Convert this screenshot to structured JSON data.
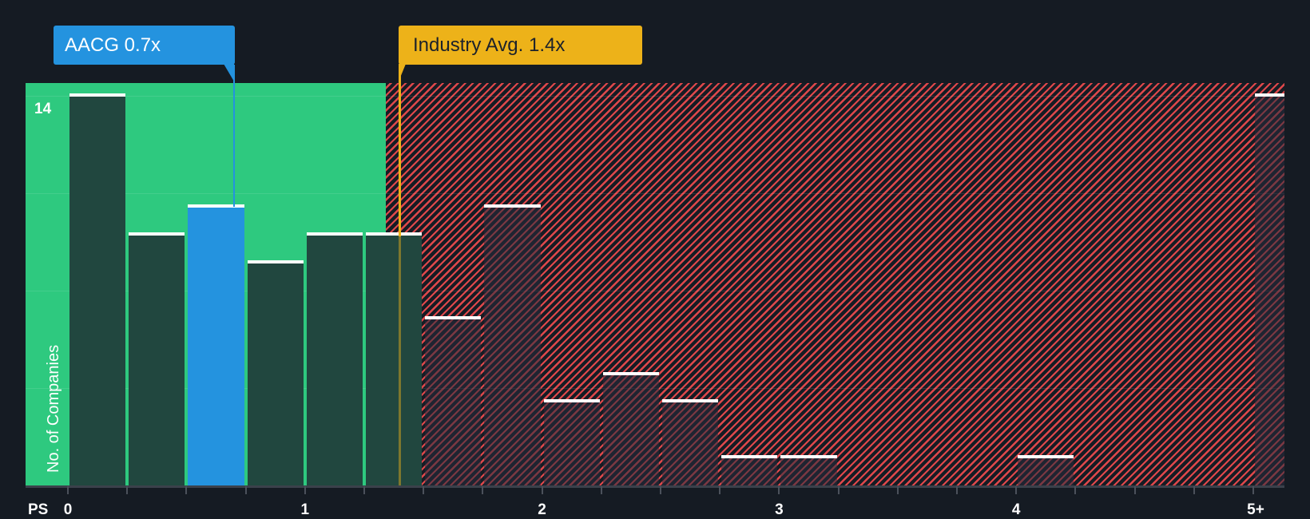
{
  "chart_data": {
    "type": "bar",
    "title": "",
    "xlabel": "PS",
    "ylabel": "No. of Companies",
    "x_tick_labels": [
      "0",
      "1",
      "2",
      "3",
      "4",
      "5+"
    ],
    "y_tick_labels": [
      "14"
    ],
    "ylim": [
      0,
      14
    ],
    "bin_width": 0.25,
    "categories": [
      "0-0.25",
      "0.25-0.5",
      "0.5-0.75",
      "0.75-1.0",
      "1.0-1.25",
      "1.25-1.5",
      "1.5-1.75",
      "1.75-2.0",
      "2.0-2.25",
      "2.25-2.5",
      "2.5-2.75",
      "2.75-3.0",
      "3.0-3.25",
      "3.25-3.5",
      "3.5-3.75",
      "3.75-4.0",
      "4.0-4.25",
      "4.25-4.5",
      "4.5-4.75",
      "4.75-5.0",
      "5+"
    ],
    "bin_starts": [
      0,
      0.25,
      0.5,
      0.75,
      1.0,
      1.25,
      1.5,
      1.75,
      2.0,
      2.25,
      2.5,
      2.75,
      3.0,
      3.25,
      3.5,
      3.75,
      4.0,
      4.25,
      4.5,
      4.75,
      5.0
    ],
    "values": [
      14,
      9,
      10,
      8,
      9,
      9,
      6,
      10,
      3,
      4,
      3,
      1,
      1,
      0,
      0,
      0,
      1,
      0,
      0,
      0,
      14
    ],
    "highlighted_bin_index": 2,
    "grid": true,
    "gridline_values": [
      3.5,
      7,
      10.5,
      14
    ],
    "annotations": [
      {
        "label": "AACG 0.7x",
        "value": 0.7,
        "color": "#2493df"
      },
      {
        "label": "Industry Avg. 1.4x",
        "value": 1.4,
        "color": "#edb219"
      }
    ],
    "zones": [
      {
        "name": "below-average",
        "from": 0,
        "to": 1.34,
        "color": "#2ec97f"
      },
      {
        "name": "above-average",
        "from": 1.34,
        "to": 5.15,
        "color": "#e0484b",
        "pattern": "hatched"
      }
    ]
  },
  "labels": {
    "company_callout": "AACG 0.7x",
    "industry_callout": "Industry Avg. 1.4x",
    "y_axis_title": "No. of Companies",
    "y_max_label": "14",
    "x_axis_name": "PS"
  },
  "colors": {
    "background": "#151b23",
    "green_zone": "#2ec97f",
    "hatch_red": "#e0484b",
    "company": "#2493df",
    "industry": "#edb219"
  }
}
